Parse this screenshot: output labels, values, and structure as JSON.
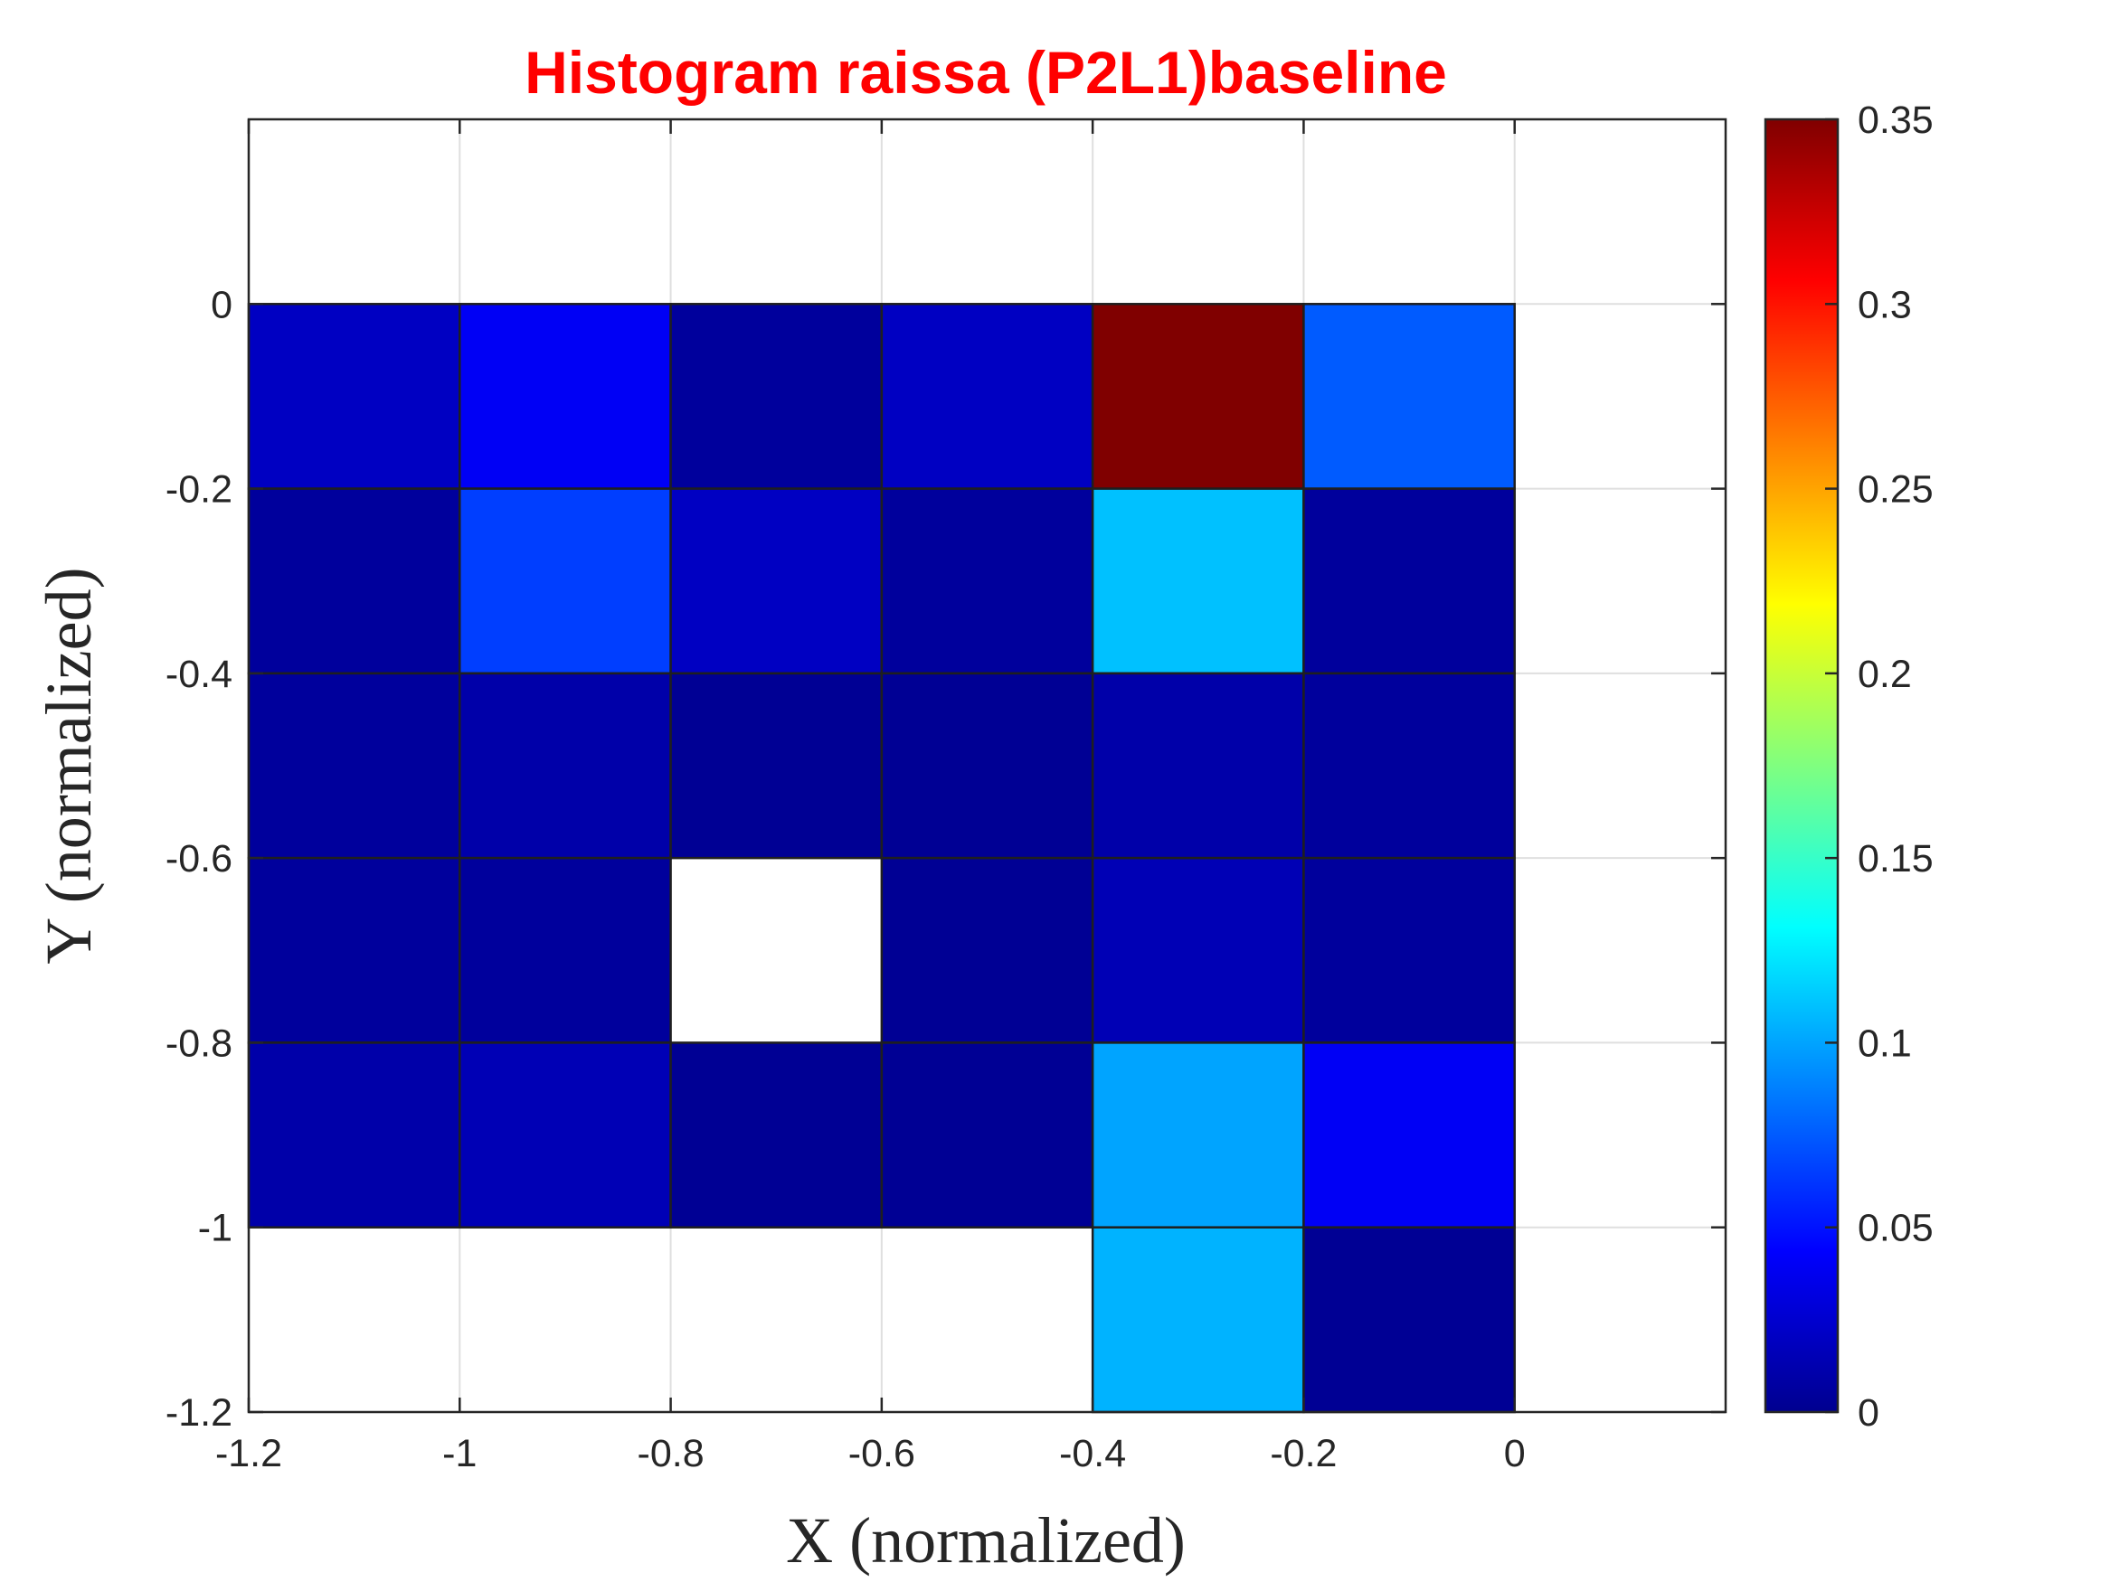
{
  "chart_data": {
    "type": "heatmap",
    "title": "Histogram raissa (P2L1)baseline",
    "xlabel": "X (normalized)",
    "ylabel": "Y (normalized)",
    "xlim": [
      -1.2,
      0.2
    ],
    "ylim": [
      -1.2,
      0.2
    ],
    "x_ticks": [
      "-1.2",
      "-1",
      "-0.8",
      "-0.6",
      "-0.4",
      "-0.2",
      "0"
    ],
    "y_ticks": [
      "-1.2",
      "-1",
      "-0.8",
      "-0.6",
      "-0.4",
      "-0.2",
      "0"
    ],
    "grid": true,
    "colormap": "jet",
    "colorbar": {
      "range": [
        0,
        0.35
      ],
      "ticks": [
        "0",
        "0.05",
        "0.1",
        "0.15",
        "0.2",
        "0.25",
        "0.3",
        "0.35"
      ]
    },
    "x_bin_edges": [
      -1.2,
      -1.0,
      -0.8,
      -0.6,
      -0.4,
      -0.2,
      0.0
    ],
    "y_bin_edges": [
      0.0,
      -0.2,
      -0.4,
      -0.6,
      -0.8,
      -1.0,
      -1.2
    ],
    "values": [
      [
        0.02,
        0.04,
        0.005,
        0.02,
        0.35,
        0.075
      ],
      [
        0.005,
        0.065,
        0.02,
        0.005,
        0.11,
        0.005
      ],
      [
        0.005,
        0.01,
        0.002,
        0.002,
        0.01,
        0.005
      ],
      [
        0.005,
        0.005,
        null,
        0.002,
        0.015,
        0.005
      ],
      [
        0.01,
        0.015,
        0.002,
        0.002,
        0.1,
        0.04
      ],
      [
        null,
        null,
        null,
        null,
        0.105,
        0.002
      ]
    ],
    "title_color": "#ff0000"
  }
}
